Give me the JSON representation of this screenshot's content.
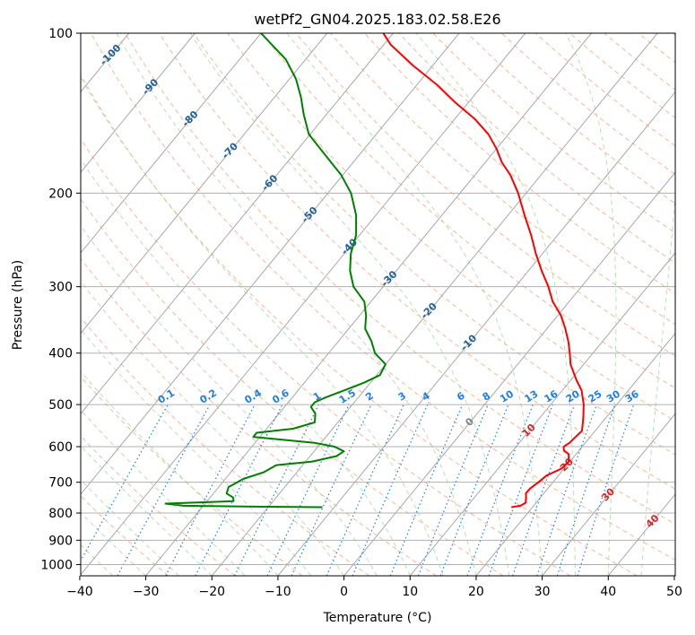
{
  "chart_data": {
    "type": "line",
    "title": "wetPf2_GN04.2025.183.02.58.E26",
    "xlabel": "Temperature (°C)",
    "ylabel": "Pressure (hPa)",
    "xlim": [
      -40,
      50
    ],
    "ylim": [
      1050,
      100
    ],
    "y_scale": "log",
    "grid": true,
    "x_ticks": [
      "−40",
      "−30",
      "−20",
      "−10",
      "0",
      "10",
      "20",
      "30",
      "40",
      "50"
    ],
    "y_ticks": [
      "100",
      "200",
      "300",
      "400",
      "500",
      "600",
      "700",
      "800",
      "900",
      "1000"
    ],
    "isotherm_labels": [
      "-100",
      "-90",
      "-80",
      "-70",
      "-60",
      "-50",
      "-40",
      "-30",
      "-20",
      "-10",
      "0",
      "10",
      "20",
      "30",
      "40"
    ],
    "mixing_ratio_labels": [
      "0.1",
      "0.2",
      "0.4",
      "0.6",
      "1",
      "1.5",
      "2",
      "3",
      "4",
      "6",
      "8",
      "10",
      "13",
      "16",
      "20",
      "25",
      "30",
      "36"
    ],
    "series": [
      {
        "color": "#ff0000",
        "points": [
          [
            780,
            16.8
          ],
          [
            775,
            18.0
          ],
          [
            765,
            18.4
          ],
          [
            750,
            17.9
          ],
          [
            735,
            17.3
          ],
          [
            720,
            17.3
          ],
          [
            700,
            17.8
          ],
          [
            680,
            18.2
          ],
          [
            660,
            19.6
          ],
          [
            640,
            19.8
          ],
          [
            620,
            18.9
          ],
          [
            610,
            17.7
          ],
          [
            600,
            17.2
          ],
          [
            590,
            17.6
          ],
          [
            560,
            18.0
          ],
          [
            530,
            16.6
          ],
          [
            500,
            15.0
          ],
          [
            470,
            12.9
          ],
          [
            450,
            10.9
          ],
          [
            420,
            8.0
          ],
          [
            400,
            6.5
          ],
          [
            380,
            4.8
          ],
          [
            360,
            2.8
          ],
          [
            340,
            0.5
          ],
          [
            320,
            -2.5
          ],
          [
            300,
            -5.0
          ],
          [
            280,
            -8.0
          ],
          [
            260,
            -11.0
          ],
          [
            240,
            -14.0
          ],
          [
            220,
            -17.5
          ],
          [
            200,
            -21.2
          ],
          [
            185,
            -24.6
          ],
          [
            175,
            -27.5
          ],
          [
            165,
            -30.0
          ],
          [
            155,
            -33.0
          ],
          [
            145,
            -37.0
          ],
          [
            135,
            -42.0
          ],
          [
            125,
            -47.0
          ],
          [
            115,
            -53.0
          ],
          [
            105,
            -59.0
          ],
          [
            100,
            -61.5
          ]
        ]
      },
      {
        "color": "#008000",
        "points": [
          [
            780,
            -11.8
          ],
          [
            778,
            -22.0
          ],
          [
            775,
            -33.0
          ],
          [
            768,
            -36.0
          ],
          [
            760,
            -26.0
          ],
          [
            748,
            -26.5
          ],
          [
            735,
            -28.0
          ],
          [
            715,
            -28.5
          ],
          [
            690,
            -27.3
          ],
          [
            670,
            -25.0
          ],
          [
            650,
            -24.0
          ],
          [
            640,
            -19.0
          ],
          [
            625,
            -16.0
          ],
          [
            612,
            -15.5
          ],
          [
            600,
            -17.5
          ],
          [
            590,
            -21.0
          ],
          [
            575,
            -31.0
          ],
          [
            565,
            -31.0
          ],
          [
            555,
            -26.0
          ],
          [
            540,
            -23.5
          ],
          [
            520,
            -24.5
          ],
          [
            505,
            -26.0
          ],
          [
            495,
            -26.0
          ],
          [
            485,
            -25.0
          ],
          [
            470,
            -23.0
          ],
          [
            455,
            -21.0
          ],
          [
            440,
            -19.5
          ],
          [
            420,
            -20.0
          ],
          [
            400,
            -23.0
          ],
          [
            380,
            -25.0
          ],
          [
            360,
            -27.5
          ],
          [
            340,
            -29.0
          ],
          [
            320,
            -31.0
          ],
          [
            300,
            -34.5
          ],
          [
            280,
            -37.0
          ],
          [
            260,
            -39.0
          ],
          [
            240,
            -40.5
          ],
          [
            220,
            -43.0
          ],
          [
            200,
            -46.5
          ],
          [
            185,
            -50.2
          ],
          [
            170,
            -55.0
          ],
          [
            155,
            -60.2
          ],
          [
            142,
            -63.5
          ],
          [
            132,
            -66.0
          ],
          [
            122,
            -69.0
          ],
          [
            112,
            -73.0
          ],
          [
            105,
            -77.0
          ],
          [
            100,
            -80.0
          ]
        ]
      }
    ]
  }
}
